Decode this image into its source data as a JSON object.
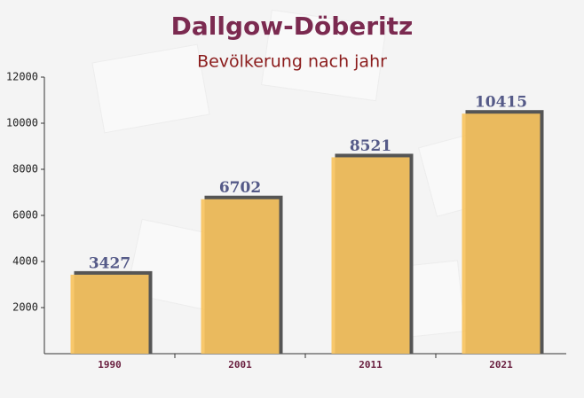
{
  "chart_data": {
    "type": "bar",
    "title": "Dallgow-Döberitz",
    "subtitle": "Bevölkerung nach jahr",
    "categories": [
      "1990",
      "2001",
      "2011",
      "2021"
    ],
    "values": [
      3427,
      6702,
      8521,
      10415
    ],
    "color": "#f7c35f",
    "ylim": [
      0,
      12000
    ],
    "yticks": [
      2000,
      4000,
      6000,
      8000,
      10000,
      12000
    ]
  }
}
